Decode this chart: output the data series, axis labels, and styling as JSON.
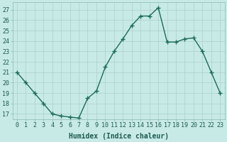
{
  "x": [
    0,
    1,
    2,
    3,
    4,
    5,
    6,
    7,
    8,
    9,
    10,
    11,
    12,
    13,
    14,
    15,
    16,
    17,
    18,
    19,
    20,
    21,
    22,
    23
  ],
  "y": [
    21,
    20,
    19,
    18,
    17,
    16.8,
    16.7,
    16.6,
    18.5,
    19.2,
    21.5,
    23,
    24.2,
    25.5,
    26.4,
    26.4,
    27.2,
    23.9,
    23.9,
    24.2,
    24.3,
    23,
    21,
    19
  ],
  "line_color": "#1a6b5a",
  "marker": "+",
  "marker_size": 4,
  "background_color": "#c8eae6",
  "grid_color": "#aed4cf",
  "xlabel": "Humidex (Indice chaleur)",
  "ylabel": "",
  "xlim": [
    -0.5,
    23.5
  ],
  "ylim": [
    16.5,
    27.7
  ],
  "yticks": [
    17,
    18,
    19,
    20,
    21,
    22,
    23,
    24,
    25,
    26,
    27
  ],
  "xticks": [
    0,
    1,
    2,
    3,
    4,
    5,
    6,
    7,
    8,
    9,
    10,
    11,
    12,
    13,
    14,
    15,
    16,
    17,
    18,
    19,
    20,
    21,
    22,
    23
  ],
  "xtick_labels": [
    "0",
    "1",
    "2",
    "3",
    "4",
    "5",
    "6",
    "7",
    "8",
    "9",
    "10",
    "11",
    "12",
    "13",
    "14",
    "15",
    "16",
    "17",
    "18",
    "19",
    "20",
    "21",
    "22",
    "23"
  ],
  "font_color": "#1a5a50",
  "label_fontsize": 7,
  "tick_fontsize": 6,
  "linewidth": 1.0,
  "marker_color": "#1a6b5a"
}
